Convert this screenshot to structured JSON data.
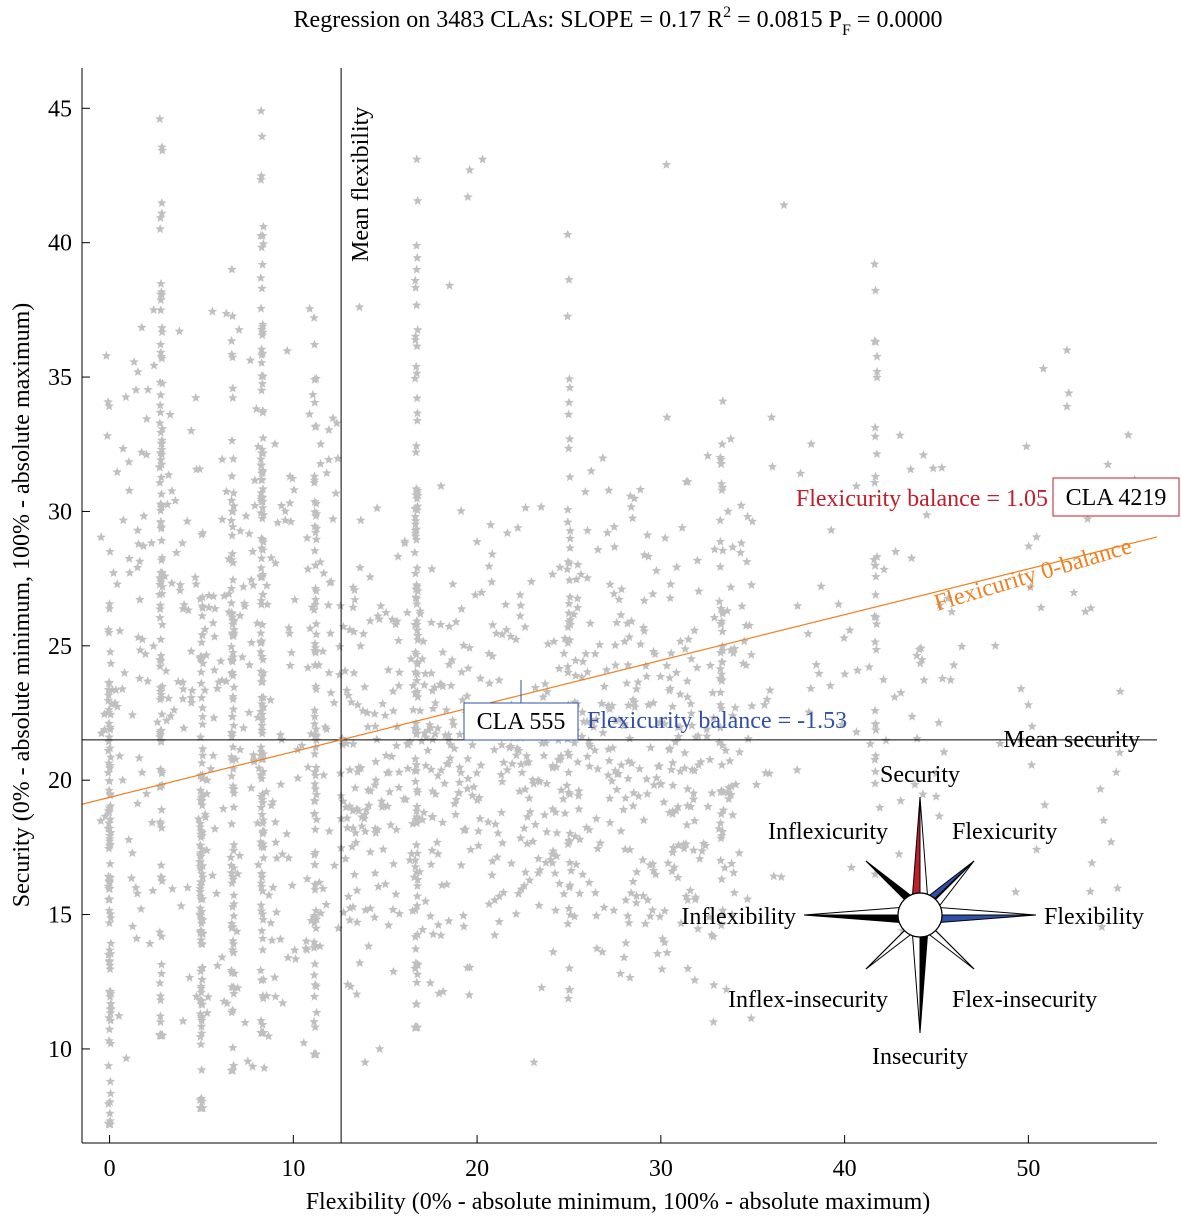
{
  "chart_data": {
    "type": "scatter",
    "title_parts": {
      "prefix": "Regression on 3483 CLAs:  SLOPE = 0.17    R",
      "r_sup": "2",
      "middle": " = 0.0815    P",
      "p_sub": "F",
      "suffix": " = 0.0000"
    },
    "xlabel": "Flexibility (0% - absolute minimum, 100% - absolute maximum)",
    "ylabel": "Security (0% - absolute minimum, 100% - absolute maximum)",
    "xlim": [
      -1.5,
      57
    ],
    "ylim": [
      6.5,
      46.5
    ],
    "x_ticks": [
      0,
      10,
      20,
      30,
      40,
      50
    ],
    "y_ticks": [
      10,
      15,
      20,
      25,
      30,
      35,
      40,
      45
    ],
    "grid": false,
    "colors": {
      "points": "#c0c0c0",
      "axes": "#000000",
      "regression": "#f08020",
      "positive": "#c0202a",
      "negative": "#3050a8"
    },
    "mean_flexibility": {
      "value": 12.6,
      "label": "Mean flexibility"
    },
    "mean_security": {
      "value": 21.5,
      "label": "Mean security"
    },
    "regression_line": {
      "intercept": 19.36,
      "slope": 0.17,
      "label": "Flexicurity 0-balance"
    },
    "annotations": [
      {
        "cla_label": "CLA 555",
        "balance_label": "Flexicurity balance = -1.53",
        "point": [
          22.3,
          22.8
        ],
        "sign": "negative"
      },
      {
        "cla_label": "CLA 4219",
        "balance_label": "Flexicurity balance = 1.05",
        "point": [
          51.6,
          29.0
        ],
        "sign": "positive"
      }
    ],
    "compass": {
      "directions": {
        "north": "Security",
        "northeast": "Flexicurity",
        "east": "Flexibility",
        "southeast": "Flex-insecurity",
        "south": "Insecurity",
        "southwest": "Inflex-insecurity",
        "west": "Inflexibility",
        "northwest": "Inflexicurity"
      }
    },
    "columns": [
      {
        "x": 0.0,
        "y_min": 7.2,
        "y_max": 28.5,
        "n": 95
      },
      {
        "x": 2.8,
        "y_min": 10.5,
        "y_max": 44.6,
        "n": 110
      },
      {
        "x": 5.0,
        "y_min": 7.8,
        "y_max": 29.2,
        "n": 110
      },
      {
        "x": 6.7,
        "y_min": 9.2,
        "y_max": 39.0,
        "n": 100
      },
      {
        "x": 8.3,
        "y_min": 10.6,
        "y_max": 44.9,
        "n": 140
      },
      {
        "x": 11.2,
        "y_min": 9.8,
        "y_max": 37.2,
        "n": 85
      },
      {
        "x": 16.7,
        "y_min": 10.8,
        "y_max": 43.1,
        "n": 110
      },
      {
        "x": 25.0,
        "y_min": 12.2,
        "y_max": 40.3,
        "n": 50
      },
      {
        "x": 33.3,
        "y_min": 14.6,
        "y_max": 34.1,
        "n": 45
      },
      {
        "x": 41.7,
        "y_min": 16.5,
        "y_max": 39.2,
        "n": 30
      }
    ],
    "scatter_clusters": [
      {
        "x_range": [
          -0.5,
          12.5
        ],
        "y_range": [
          9.0,
          38.0
        ],
        "n": 330
      },
      {
        "x_range": [
          12.5,
          35.0
        ],
        "y_range": [
          11.0,
          31.5
        ],
        "n": 480
      },
      {
        "x_range": [
          12.5,
          32.0
        ],
        "y_range": [
          14.0,
          26.0
        ],
        "n": 220
      },
      {
        "x_range": [
          24.0,
          46.0
        ],
        "y_range": [
          14.0,
          33.5
        ],
        "n": 120
      },
      {
        "x_range": [
          38.0,
          56.0
        ],
        "y_range": [
          14.0,
          36.0
        ],
        "n": 45
      }
    ],
    "outliers": [
      [
        19.6,
        42.7
      ],
      [
        20.3,
        43.1
      ],
      [
        30.3,
        42.9
      ],
      [
        36.7,
        41.4
      ],
      [
        19.5,
        41.7
      ],
      [
        18.5,
        38.4
      ],
      [
        13.6,
        37.6
      ],
      [
        52.1,
        36.0
      ],
      [
        52.2,
        34.4
      ],
      [
        52.1,
        33.9
      ],
      [
        55.0,
        23.3
      ],
      [
        54.1,
        18.5
      ],
      [
        54.5,
        17.7
      ],
      [
        53.4,
        26.4
      ],
      [
        50.2,
        22.0
      ],
      [
        49.6,
        23.4
      ],
      [
        50.0,
        22.8
      ],
      [
        48.2,
        25.0
      ],
      [
        28.0,
        13.4
      ],
      [
        27.8,
        12.8
      ],
      [
        23.1,
        9.5
      ],
      [
        13.9,
        9.5
      ],
      [
        14.7,
        10.0
      ],
      [
        3.8,
        36.7
      ],
      [
        3.3,
        33.6
      ]
    ]
  }
}
